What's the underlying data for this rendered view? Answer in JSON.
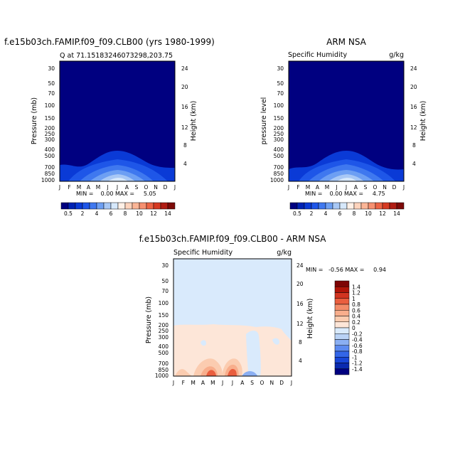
{
  "colors": {
    "levels_abs": [
      "#000080",
      "#0022b3",
      "#0a3ad6",
      "#1e56e8",
      "#3f78ef",
      "#6d9ff3",
      "#a8c8f5",
      "#d6e8fb",
      "#fff0e6",
      "#fdd3bc",
      "#fbb596",
      "#f69070",
      "#ec6344",
      "#d63a22",
      "#b01c12",
      "#7d0a08"
    ],
    "levels_diff": [
      "#000080",
      "#0a2ab0",
      "#1846d8",
      "#3366e8",
      "#5c8af0",
      "#8aaff3",
      "#b9d2f6",
      "#d9eafc",
      "#fde6d8",
      "#fbccb0",
      "#f8ae8c",
      "#f38b68",
      "#ea5e3e",
      "#d23420",
      "#b01408",
      "#7d0404"
    ]
  },
  "panels": [
    {
      "id": "model",
      "main_title": "f.e15b03ch.FAMIP.f09_f09.CLB00 (yrs 1980-1999)",
      "left_sub": "Q at 71.15183246073298,203.75",
      "right_sub": "",
      "ylabel": "Pressure (mb)",
      "y2label": "Height (km)",
      "min_max": "MIN =    0.00 MAX =     5.05"
    },
    {
      "id": "obs",
      "main_title": "ARM NSA",
      "left_sub": "Specific Humidity",
      "right_sub": "g/kg",
      "ylabel": "pressure level",
      "y2label": "Height (km)",
      "min_max": "MIN =    0.00 MAX =     4.75"
    },
    {
      "id": "diff",
      "main_title": "f.e15b03ch.FAMIP.f09_f09.CLB00 - ARM NSA",
      "left_sub": "Specific Humidity",
      "right_sub": "g/kg",
      "ylabel": "Pressure (mb)",
      "y2label": "Height (km)",
      "min_max": "MIN =   -0.56 MAX =     0.94"
    }
  ],
  "pressure_ticks": [
    "30",
    "50",
    "70",
    "100",
    "150",
    "200",
    "250",
    "300",
    "400",
    "500",
    "700",
    "850",
    "1000"
  ],
  "height_ticks": [
    "24",
    "20",
    "16",
    "12",
    "8",
    "4"
  ],
  "month_ticks": [
    "J",
    "F",
    "M",
    "A",
    "M",
    "J",
    "J",
    "A",
    "S",
    "O",
    "N",
    "D",
    "J"
  ],
  "colorbar_abs": [
    "0.5",
    "2",
    "4",
    "6",
    "8",
    "10",
    "12",
    "14"
  ],
  "colorbar_diff": [
    "1.4",
    "1.2",
    "1",
    "0.8",
    "0.6",
    "0.4",
    "0.2",
    "0",
    "-0.2",
    "-0.4",
    "-0.6",
    "-0.8",
    "-1",
    "-1.2",
    "-1.4"
  ],
  "chart_data": [
    {
      "type": "heatmap",
      "title": "f.e15b03ch.FAMIP.f09_f09.CLB00 (yrs 1980-1999)",
      "subtitle": "Q at 71.15183246073298,203.75",
      "xlabel": "",
      "ylabel": "Pressure (mb)",
      "y2label": "Height (km)",
      "x": [
        "J",
        "F",
        "M",
        "A",
        "M",
        "J",
        "J",
        "A",
        "S",
        "O",
        "N",
        "D",
        "J"
      ],
      "pressure_levels": [
        30,
        50,
        70,
        100,
        150,
        200,
        250,
        300,
        400,
        500,
        700,
        850,
        1000
      ],
      "min": 0.0,
      "max": 5.05,
      "levels": [
        0.5,
        1,
        2,
        3,
        4,
        5,
        6,
        7,
        8,
        9,
        10,
        11,
        12,
        13,
        14
      ],
      "description": "near-zero humidity above ~500 mb; maximum near surface in July"
    },
    {
      "type": "heatmap",
      "title": "ARM NSA",
      "subtitle": "Specific Humidity",
      "units": "g/kg",
      "ylabel": "pressure level",
      "y2label": "Height (km)",
      "x": [
        "J",
        "F",
        "M",
        "A",
        "M",
        "J",
        "J",
        "A",
        "S",
        "O",
        "N",
        "D",
        "J"
      ],
      "pressure_levels": [
        30,
        50,
        70,
        100,
        150,
        200,
        250,
        300,
        400,
        500,
        700,
        850,
        1000
      ],
      "min": 0.0,
      "max": 4.75,
      "levels": [
        0.5,
        1,
        2,
        3,
        4,
        5,
        6,
        7,
        8,
        9,
        10,
        11,
        12,
        13,
        14
      ]
    },
    {
      "type": "heatmap",
      "title": "f.e15b03ch.FAMIP.f09_f09.CLB00 - ARM NSA",
      "subtitle": "Specific Humidity",
      "units": "g/kg",
      "ylabel": "Pressure (mb)",
      "y2label": "Height (km)",
      "x": [
        "J",
        "F",
        "M",
        "A",
        "M",
        "J",
        "J",
        "A",
        "S",
        "O",
        "N",
        "D",
        "J"
      ],
      "pressure_levels": [
        30,
        50,
        70,
        100,
        150,
        200,
        250,
        300,
        400,
        500,
        700,
        850,
        1000
      ],
      "min": -0.56,
      "max": 0.94,
      "levels": [
        -1.4,
        -1.2,
        -1,
        -0.8,
        -0.6,
        -0.4,
        -0.2,
        0,
        0.2,
        0.4,
        0.6,
        0.8,
        1,
        1.2,
        1.4
      ]
    }
  ]
}
